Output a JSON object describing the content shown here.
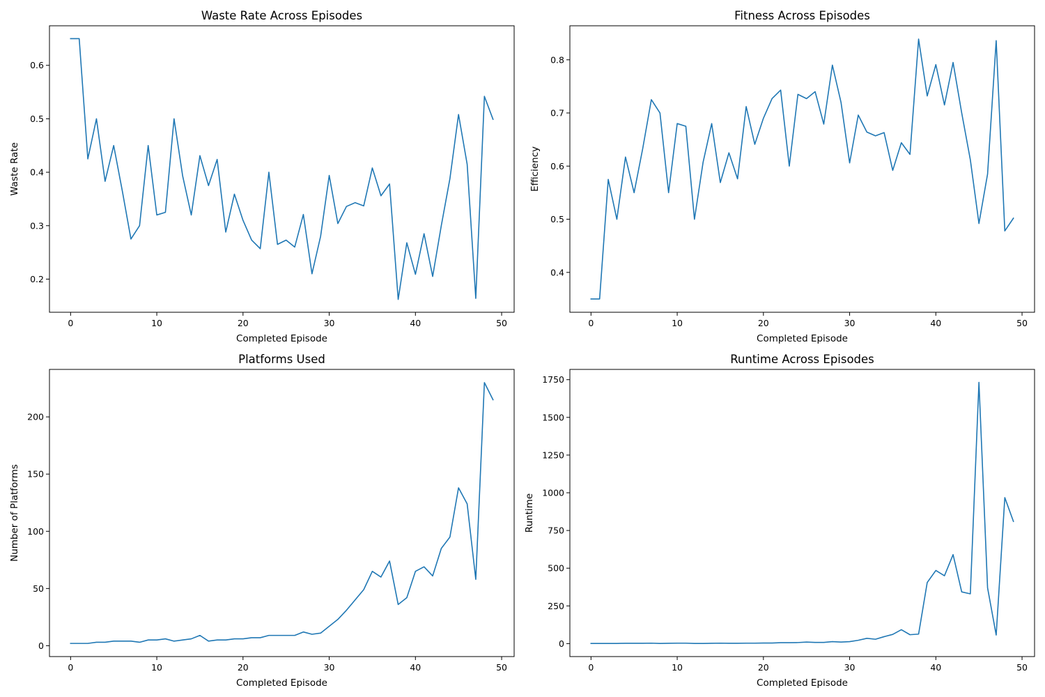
{
  "colors": {
    "series": "#1f77b4",
    "axes": "#000000",
    "background": "#ffffff"
  },
  "chart_data": [
    {
      "type": "line",
      "title": "Waste Rate Across Episodes",
      "xlabel": "Completed Episode",
      "ylabel": "Waste Rate",
      "xlim": [
        -2.45,
        51.45
      ],
      "ylim": [
        0.138,
        0.674
      ],
      "xticks": [
        0,
        10,
        20,
        30,
        40,
        50
      ],
      "yticks": [
        0.2,
        0.3,
        0.4,
        0.5,
        0.6
      ],
      "xtick_labels": [
        "0",
        "10",
        "20",
        "30",
        "40",
        "50"
      ],
      "ytick_labels": [
        "0.2",
        "0.3",
        "0.4",
        "0.5",
        "0.6"
      ],
      "grid": false,
      "series": [
        {
          "x": [
            0,
            1,
            2,
            3,
            4,
            5,
            6,
            7,
            8,
            9,
            10,
            11,
            12,
            13,
            14,
            15,
            16,
            17,
            18,
            19,
            20,
            21,
            22,
            23,
            24,
            25,
            26,
            27,
            28,
            29,
            30,
            31,
            32,
            33,
            34,
            35,
            36,
            37,
            38,
            39,
            40,
            41,
            42,
            43,
            44,
            45,
            46,
            47,
            48,
            49
          ],
          "values": [
            0.65,
            0.65,
            0.425,
            0.5,
            0.383,
            0.45,
            0.365,
            0.275,
            0.3,
            0.45,
            0.32,
            0.325,
            0.5,
            0.393,
            0.32,
            0.431,
            0.375,
            0.424,
            0.288,
            0.359,
            0.31,
            0.273,
            0.257,
            0.4,
            0.265,
            0.273,
            0.26,
            0.321,
            0.21,
            0.28,
            0.394,
            0.304,
            0.336,
            0.343,
            0.337,
            0.408,
            0.356,
            0.378,
            0.162,
            0.268,
            0.209,
            0.285,
            0.205,
            0.3,
            0.388,
            0.508,
            0.415,
            0.164,
            0.542,
            0.499
          ]
        }
      ]
    },
    {
      "type": "line",
      "title": "Fitness Across Episodes",
      "xlabel": "Completed Episode",
      "ylabel": "Efficiency",
      "xlim": [
        -2.45,
        51.45
      ],
      "ylim": [
        0.325,
        0.864
      ],
      "xticks": [
        0,
        10,
        20,
        30,
        40,
        50
      ],
      "yticks": [
        0.4,
        0.5,
        0.6,
        0.7,
        0.8
      ],
      "xtick_labels": [
        "0",
        "10",
        "20",
        "30",
        "40",
        "50"
      ],
      "ytick_labels": [
        "0.4",
        "0.5",
        "0.6",
        "0.7",
        "0.8"
      ],
      "grid": false,
      "series": [
        {
          "x": [
            0,
            1,
            2,
            3,
            4,
            5,
            6,
            7,
            8,
            9,
            10,
            11,
            12,
            13,
            14,
            15,
            16,
            17,
            18,
            19,
            20,
            21,
            22,
            23,
            24,
            25,
            26,
            27,
            28,
            29,
            30,
            31,
            32,
            33,
            34,
            35,
            36,
            37,
            38,
            39,
            40,
            41,
            42,
            43,
            44,
            45,
            46,
            47,
            48,
            49
          ],
          "values": [
            0.35,
            0.35,
            0.575,
            0.5,
            0.617,
            0.55,
            0.633,
            0.725,
            0.7,
            0.55,
            0.68,
            0.675,
            0.5,
            0.607,
            0.68,
            0.569,
            0.625,
            0.576,
            0.712,
            0.641,
            0.69,
            0.727,
            0.743,
            0.6,
            0.735,
            0.727,
            0.74,
            0.679,
            0.79,
            0.72,
            0.606,
            0.696,
            0.664,
            0.657,
            0.663,
            0.592,
            0.644,
            0.622,
            0.839,
            0.732,
            0.791,
            0.715,
            0.795,
            0.7,
            0.612,
            0.492,
            0.585,
            0.836,
            0.478,
            0.502
          ]
        }
      ]
    },
    {
      "type": "line",
      "title": "Platforms Used",
      "xlabel": "Completed Episode",
      "ylabel": "Number of Platforms",
      "xlim": [
        -2.45,
        51.45
      ],
      "ylim": [
        -9.5,
        241.5
      ],
      "xticks": [
        0,
        10,
        20,
        30,
        40,
        50
      ],
      "yticks": [
        0,
        50,
        100,
        150,
        200
      ],
      "xtick_labels": [
        "0",
        "10",
        "20",
        "30",
        "40",
        "50"
      ],
      "ytick_labels": [
        "0",
        "50",
        "100",
        "150",
        "200"
      ],
      "grid": false,
      "series": [
        {
          "x": [
            0,
            1,
            2,
            3,
            4,
            5,
            6,
            7,
            8,
            9,
            10,
            11,
            12,
            13,
            14,
            15,
            16,
            17,
            18,
            19,
            20,
            21,
            22,
            23,
            24,
            25,
            26,
            27,
            28,
            29,
            30,
            31,
            32,
            33,
            34,
            35,
            36,
            37,
            38,
            39,
            40,
            41,
            42,
            43,
            44,
            45,
            46,
            47,
            48,
            49
          ],
          "values": [
            2,
            2,
            2,
            3,
            3,
            4,
            4,
            4,
            3,
            5,
            5,
            6,
            4,
            5,
            6,
            9,
            4,
            5,
            5,
            6,
            6,
            7,
            7,
            9,
            9,
            9,
            9,
            12,
            10,
            11,
            17,
            23,
            31,
            40,
            49,
            65,
            60,
            74,
            36,
            42,
            65,
            69,
            61,
            85,
            95,
            138,
            124,
            58,
            230,
            215
          ]
        }
      ]
    },
    {
      "type": "line",
      "title": "Runtime Across Episodes",
      "xlabel": "Completed Episode",
      "ylabel": "Runtime",
      "xlim": [
        -2.45,
        51.45
      ],
      "ylim": [
        -86,
        1818
      ],
      "xticks": [
        0,
        10,
        20,
        30,
        40,
        50
      ],
      "yticks": [
        0,
        250,
        500,
        750,
        1000,
        1250,
        1500,
        1750
      ],
      "xtick_labels": [
        "0",
        "10",
        "20",
        "30",
        "40",
        "50"
      ],
      "ytick_labels": [
        "0",
        "250",
        "500",
        "750",
        "1000",
        "1250",
        "1500",
        "1750"
      ],
      "grid": false,
      "series": [
        {
          "x": [
            0,
            1,
            2,
            3,
            4,
            5,
            6,
            7,
            8,
            9,
            10,
            11,
            12,
            13,
            14,
            15,
            16,
            17,
            18,
            19,
            20,
            21,
            22,
            23,
            24,
            25,
            26,
            27,
            28,
            29,
            30,
            31,
            32,
            33,
            34,
            35,
            36,
            37,
            38,
            39,
            40,
            41,
            42,
            43,
            44,
            45,
            46,
            47,
            48,
            49
          ],
          "values": [
            1,
            1,
            1,
            1,
            2,
            2,
            2,
            3,
            1,
            2,
            3,
            3,
            1,
            1,
            2,
            3,
            2,
            2,
            3,
            3,
            4,
            4,
            6,
            6,
            7,
            10,
            8,
            8,
            13,
            10,
            13,
            22,
            35,
            29,
            46,
            61,
            92,
            59,
            63,
            405,
            485,
            450,
            590,
            343,
            330,
            1732,
            370,
            57,
            968,
            810
          ]
        }
      ]
    }
  ]
}
